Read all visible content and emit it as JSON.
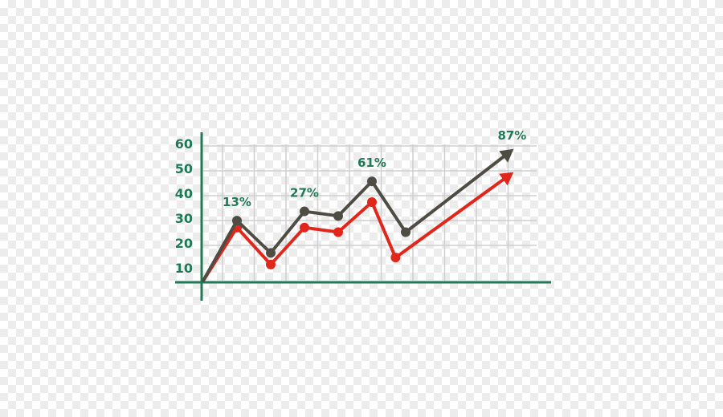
{
  "chart_data": {
    "type": "line",
    "title": "",
    "xlabel": "",
    "ylabel": "",
    "ylim": [
      5,
      64
    ],
    "yticks": [
      10,
      20,
      30,
      40,
      50,
      60
    ],
    "grid": true,
    "colors": {
      "axis": "#1f7a55",
      "grid": "#cfcfcf",
      "series1": "#4f4c44",
      "series2": "#e1261c",
      "label": "#1f7a55"
    },
    "series": [
      {
        "points": [
          [
            0,
            5
          ],
          [
            1,
            31
          ],
          [
            2,
            17
          ],
          [
            3,
            35
          ],
          [
            4,
            33
          ],
          [
            5,
            48
          ],
          [
            6,
            26
          ]
        ],
        "arrow_to": [
          9.2,
          62
        ],
        "labels": [
          {
            "i": 1,
            "text": "13%"
          },
          {
            "i": 3,
            "text": "27%"
          },
          {
            "i": 5,
            "text": "61%"
          }
        ],
        "end_label": "87%"
      },
      {
        "points": [
          [
            0,
            5
          ],
          [
            1,
            28
          ],
          [
            2,
            12
          ],
          [
            3,
            28
          ],
          [
            4,
            26
          ],
          [
            5,
            39
          ],
          [
            5.7,
            15
          ]
        ],
        "arrow_to": [
          9.2,
          52
        ]
      }
    ]
  }
}
